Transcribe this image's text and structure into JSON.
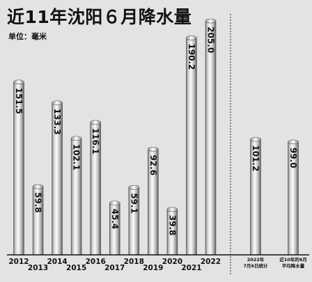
{
  "title": "近11年沈阳６月降水量",
  "unit_label": "单位：毫米",
  "chart_data": {
    "type": "bar",
    "title": "近11年沈阳６月降水量",
    "ylabel": "单位：毫米",
    "ylim": [
      0,
      215
    ],
    "grid": false,
    "categories": [
      "2012",
      "2013",
      "2014",
      "2015",
      "2016",
      "2017",
      "2018",
      "2019",
      "2020",
      "2021",
      "2022"
    ],
    "values": [
      151.5,
      59.8,
      133.3,
      102.1,
      116.1,
      45.4,
      59.1,
      92.6,
      39.8,
      190.2,
      205.0
    ],
    "value_labels": [
      "151.5",
      "59.8",
      "133.3",
      "102.1",
      "116.1",
      "45.4",
      "59.1",
      "92.6",
      "39.8",
      "190.2",
      "205.0"
    ],
    "comparison": {
      "categories": [
        [
          "2022年",
          "7月6日统计"
        ],
        [
          "近10年的6月",
          "平均降水量"
        ]
      ],
      "values": [
        101.2,
        99.0
      ],
      "value_labels": [
        "101.2",
        "99.0"
      ]
    }
  }
}
